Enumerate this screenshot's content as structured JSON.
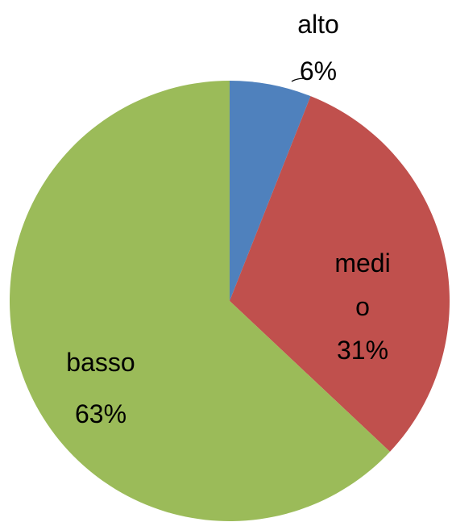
{
  "chart_data": {
    "type": "pie",
    "categories": [
      "alto",
      "medio",
      "basso"
    ],
    "values": [
      6,
      31,
      63
    ],
    "value_labels": [
      "6%",
      "31%",
      "63%"
    ],
    "colors": [
      "#4f81bd",
      "#c0504d",
      "#9bbb59"
    ]
  }
}
